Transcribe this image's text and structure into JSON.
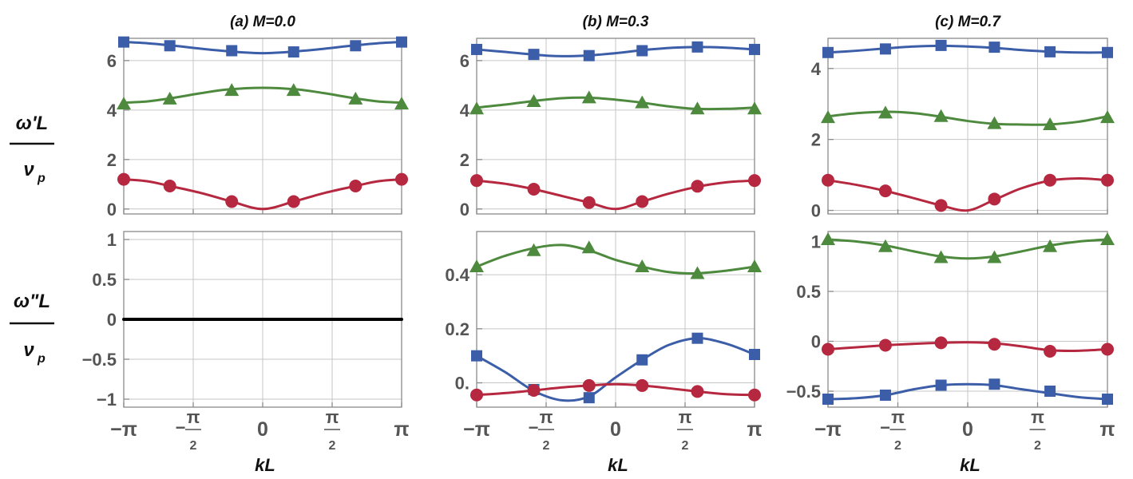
{
  "figure": {
    "row_labels": {
      "top": {
        "num": "ω'L",
        "den": "ν",
        "den_sub": "p"
      },
      "bottom": {
        "num": "ω\"L",
        "den": "ν",
        "den_sub": "p"
      }
    },
    "x_tick_labels": [
      "−π",
      "−π/2",
      "0",
      "π/2",
      "π"
    ],
    "x_label": "kL"
  },
  "chart_data": [
    {
      "type": "line",
      "panel": "a",
      "part": "real",
      "title": "(a) M=0.0",
      "xlabel": "",
      "ylabel": "ω'L / νp",
      "xlim": [
        -3.1416,
        3.1416
      ],
      "ylim": [
        -0.2,
        6.9
      ],
      "yticks": [
        0,
        2,
        4,
        6
      ],
      "ytick_labels": [
        "0",
        "2",
        "4",
        "6"
      ],
      "grid": true,
      "series": [
        {
          "color": "#3c5ea8",
          "marker": "square",
          "x": [
            -3.1416,
            -2.6,
            -2.0,
            -1.4,
            -0.8,
            0,
            0.8,
            1.4,
            2.0,
            2.6,
            3.1416
          ],
          "y": [
            6.75,
            6.7,
            6.6,
            6.48,
            6.38,
            6.3,
            6.38,
            6.48,
            6.6,
            6.7,
            6.75
          ],
          "markers_x": [
            -3.1416,
            -2.1,
            -0.7,
            0.7,
            2.1,
            3.1416
          ],
          "markers_y": [
            6.75,
            6.6,
            6.4,
            6.35,
            6.6,
            6.75
          ]
        },
        {
          "color": "#4e8a3e",
          "marker": "triangle",
          "x": [
            -3.1416,
            -2.6,
            -2.0,
            -1.4,
            -0.8,
            0,
            0.8,
            1.4,
            2.0,
            2.6,
            3.1416
          ],
          "y": [
            4.3,
            4.35,
            4.5,
            4.68,
            4.83,
            4.9,
            4.83,
            4.68,
            4.5,
            4.35,
            4.3
          ],
          "markers_x": [
            -3.1416,
            -2.1,
            -0.7,
            0.7,
            2.1,
            3.1416
          ],
          "markers_y": [
            4.25,
            4.45,
            4.8,
            4.8,
            4.45,
            4.25
          ]
        },
        {
          "color": "#b5283f",
          "marker": "circle",
          "x": [
            -3.1416,
            -2.6,
            -2.1,
            -1.4,
            -0.7,
            0,
            0.7,
            1.4,
            2.1,
            2.6,
            3.1416
          ],
          "y": [
            1.2,
            1.12,
            0.93,
            0.65,
            0.3,
            0.0,
            0.3,
            0.65,
            0.93,
            1.12,
            1.2
          ],
          "markers_x": [
            -3.1416,
            -2.1,
            -0.7,
            0.7,
            2.1,
            3.1416
          ],
          "markers_y": [
            1.2,
            0.93,
            0.3,
            0.3,
            0.93,
            1.2
          ]
        }
      ]
    },
    {
      "type": "line",
      "panel": "b",
      "part": "real",
      "title": "(b) M=0.3",
      "xlabel": "",
      "ylabel": "",
      "xlim": [
        -3.1416,
        3.1416
      ],
      "ylim": [
        -0.2,
        6.9
      ],
      "yticks": [
        0,
        2,
        4,
        6
      ],
      "ytick_labels": [
        "0",
        "2",
        "4",
        "6"
      ],
      "grid": true,
      "series": [
        {
          "color": "#3c5ea8",
          "marker": "square",
          "x": [
            -3.1416,
            -2.5,
            -1.9,
            -1.3,
            -0.7,
            0,
            0.6,
            1.3,
            1.9,
            2.5,
            3.1416
          ],
          "y": [
            6.45,
            6.35,
            6.25,
            6.18,
            6.2,
            6.3,
            6.42,
            6.52,
            6.55,
            6.52,
            6.45
          ],
          "markers_x": [
            -3.1416,
            -1.85,
            -0.6,
            0.6,
            1.85,
            3.1416
          ],
          "markers_y": [
            6.45,
            6.25,
            6.2,
            6.4,
            6.55,
            6.45
          ]
        },
        {
          "color": "#4e8a3e",
          "marker": "triangle",
          "x": [
            -3.1416,
            -2.5,
            -1.8,
            -1.2,
            -0.6,
            0,
            0.6,
            1.2,
            1.8,
            2.5,
            3.1416
          ],
          "y": [
            4.1,
            4.22,
            4.38,
            4.48,
            4.5,
            4.42,
            4.3,
            4.15,
            4.05,
            4.05,
            4.1
          ],
          "markers_x": [
            -3.1416,
            -1.85,
            -0.6,
            0.6,
            1.85,
            3.1416
          ],
          "markers_y": [
            4.05,
            4.35,
            4.5,
            4.3,
            4.05,
            4.05
          ]
        },
        {
          "color": "#b5283f",
          "marker": "circle",
          "x": [
            -3.1416,
            -2.5,
            -1.85,
            -1.2,
            -0.6,
            0,
            0.6,
            1.2,
            1.85,
            2.5,
            3.1416
          ],
          "y": [
            1.15,
            1.02,
            0.8,
            0.52,
            0.26,
            0.0,
            0.3,
            0.62,
            0.9,
            1.08,
            1.15
          ],
          "markers_x": [
            -3.1416,
            -1.85,
            -0.6,
            0.6,
            1.85,
            3.1416
          ],
          "markers_y": [
            1.15,
            0.8,
            0.26,
            0.3,
            0.92,
            1.15
          ]
        }
      ]
    },
    {
      "type": "line",
      "panel": "c",
      "part": "real",
      "title": "(c) M=0.7",
      "xlabel": "",
      "ylabel": "",
      "xlim": [
        -3.1416,
        3.1416
      ],
      "ylim": [
        -0.1,
        4.85
      ],
      "yticks": [
        0,
        2,
        4
      ],
      "ytick_labels": [
        "0",
        "2",
        "4"
      ],
      "grid": true,
      "series": [
        {
          "color": "#3c5ea8",
          "marker": "square",
          "x": [
            -3.1416,
            -2.5,
            -1.9,
            -1.2,
            -0.6,
            0,
            0.6,
            1.2,
            1.9,
            2.5,
            3.1416
          ],
          "y": [
            4.45,
            4.5,
            4.56,
            4.62,
            4.64,
            4.62,
            4.58,
            4.52,
            4.47,
            4.45,
            4.45
          ],
          "markers_x": [
            -3.1416,
            -1.85,
            -0.6,
            0.6,
            1.85,
            3.1416
          ],
          "markers_y": [
            4.45,
            4.55,
            4.65,
            4.6,
            4.47,
            4.45
          ]
        },
        {
          "color": "#4e8a3e",
          "marker": "triangle",
          "x": [
            -3.1416,
            -2.5,
            -1.8,
            -1.2,
            -0.6,
            0,
            0.6,
            1.2,
            1.8,
            2.5,
            3.1416
          ],
          "y": [
            2.65,
            2.74,
            2.78,
            2.74,
            2.64,
            2.52,
            2.44,
            2.42,
            2.42,
            2.5,
            2.65
          ],
          "markers_x": [
            -3.1416,
            -1.85,
            -0.6,
            0.6,
            1.85,
            3.1416
          ],
          "markers_y": [
            2.62,
            2.75,
            2.65,
            2.45,
            2.42,
            2.62
          ]
        },
        {
          "color": "#b5283f",
          "marker": "circle",
          "x": [
            -3.1416,
            -2.5,
            -1.85,
            -1.2,
            -0.6,
            0,
            0.6,
            1.2,
            1.85,
            2.5,
            3.1416
          ],
          "y": [
            0.85,
            0.72,
            0.55,
            0.34,
            0.14,
            0.0,
            0.3,
            0.62,
            0.84,
            0.9,
            0.85
          ],
          "markers_x": [
            -3.1416,
            -1.85,
            -0.6,
            0.6,
            1.85,
            3.1416
          ],
          "markers_y": [
            0.85,
            0.55,
            0.14,
            0.32,
            0.85,
            0.85
          ]
        }
      ]
    },
    {
      "type": "line",
      "panel": "a",
      "part": "imaginary",
      "title": "",
      "xlabel": "kL",
      "ylabel": "ω\"L / νp",
      "xlim": [
        -3.1416,
        3.1416
      ],
      "ylim": [
        -1.1,
        1.1
      ],
      "yticks": [
        -1,
        -0.5,
        0,
        0.5,
        1
      ],
      "ytick_labels": [
        "−1",
        "−0.5",
        "0",
        "0.5",
        "1"
      ],
      "grid": true,
      "series": [
        {
          "color": "#000000",
          "marker": "none",
          "x": [
            -3.1416,
            3.1416
          ],
          "y": [
            0,
            0
          ],
          "markers_x": [],
          "markers_y": []
        }
      ]
    },
    {
      "type": "line",
      "panel": "b",
      "part": "imaginary",
      "title": "",
      "xlabel": "kL",
      "ylabel": "",
      "xlim": [
        -3.1416,
        3.1416
      ],
      "ylim": [
        -0.09,
        0.56
      ],
      "yticks": [
        0,
        0.2,
        0.4
      ],
      "ytick_labels": [
        "0.",
        "0.2",
        "0.4"
      ],
      "grid": true,
      "series": [
        {
          "color": "#4e8a3e",
          "marker": "triangle",
          "x": [
            -3.1416,
            -2.5,
            -1.8,
            -1.2,
            -0.6,
            0,
            0.6,
            1.2,
            1.8,
            2.5,
            3.1416
          ],
          "y": [
            0.43,
            0.47,
            0.5,
            0.51,
            0.49,
            0.455,
            0.43,
            0.41,
            0.405,
            0.415,
            0.43
          ],
          "markers_x": [
            -3.1416,
            -1.85,
            -0.6,
            0.6,
            1.85,
            3.1416
          ],
          "markers_y": [
            0.43,
            0.49,
            0.5,
            0.43,
            0.405,
            0.43
          ]
        },
        {
          "color": "#3c5ea8",
          "marker": "square",
          "x": [
            -3.1416,
            -2.5,
            -1.85,
            -1.2,
            -0.6,
            0,
            0.6,
            1.2,
            1.85,
            2.5,
            3.1416
          ],
          "y": [
            0.1,
            0.04,
            -0.03,
            -0.065,
            -0.05,
            0.02,
            0.085,
            0.14,
            0.165,
            0.145,
            0.105
          ],
          "markers_x": [
            -3.1416,
            -1.85,
            -0.6,
            0.6,
            1.85,
            3.1416
          ],
          "markers_y": [
            0.1,
            -0.025,
            -0.055,
            0.085,
            0.165,
            0.105
          ]
        },
        {
          "color": "#b5283f",
          "marker": "circle",
          "x": [
            -3.1416,
            -2.5,
            -1.85,
            -1.2,
            -0.6,
            0,
            0.6,
            1.2,
            1.85,
            2.5,
            3.1416
          ],
          "y": [
            -0.045,
            -0.038,
            -0.028,
            -0.017,
            -0.01,
            -0.005,
            -0.01,
            -0.02,
            -0.032,
            -0.042,
            -0.045
          ],
          "markers_x": [
            -3.1416,
            -1.85,
            -0.6,
            0.6,
            1.85,
            3.1416
          ],
          "markers_y": [
            -0.045,
            -0.028,
            -0.01,
            -0.01,
            -0.032,
            -0.045
          ]
        }
      ]
    },
    {
      "type": "line",
      "panel": "c",
      "part": "imaginary",
      "title": "",
      "xlabel": "kL",
      "ylabel": "",
      "xlim": [
        -3.1416,
        3.1416
      ],
      "ylim": [
        -0.66,
        1.1
      ],
      "yticks": [
        -0.5,
        0,
        0.5,
        1
      ],
      "ytick_labels": [
        "−0.5",
        "0",
        "0.5",
        "1"
      ],
      "grid": true,
      "series": [
        {
          "color": "#4e8a3e",
          "marker": "triangle",
          "x": [
            -3.1416,
            -2.5,
            -1.85,
            -1.2,
            -0.6,
            0,
            0.6,
            1.2,
            1.85,
            2.5,
            3.1416
          ],
          "y": [
            1.02,
            1.0,
            0.96,
            0.9,
            0.85,
            0.83,
            0.85,
            0.9,
            0.96,
            1.0,
            1.02
          ],
          "markers_x": [
            -3.1416,
            -1.85,
            -0.6,
            0.6,
            1.85,
            3.1416
          ],
          "markers_y": [
            1.02,
            0.95,
            0.84,
            0.84,
            0.95,
            1.02
          ]
        },
        {
          "color": "#b5283f",
          "marker": "circle",
          "x": [
            -3.1416,
            -2.5,
            -1.85,
            -1.2,
            -0.6,
            0,
            0.6,
            1.2,
            1.85,
            2.5,
            3.1416
          ],
          "y": [
            -0.08,
            -0.06,
            -0.04,
            -0.025,
            -0.015,
            -0.01,
            -0.02,
            -0.05,
            -0.09,
            -0.095,
            -0.08
          ],
          "markers_x": [
            -3.1416,
            -1.85,
            -0.6,
            0.6,
            1.85,
            3.1416
          ],
          "markers_y": [
            -0.08,
            -0.04,
            -0.015,
            -0.03,
            -0.1,
            -0.08
          ]
        },
        {
          "color": "#3c5ea8",
          "marker": "square",
          "x": [
            -3.1416,
            -2.5,
            -1.85,
            -1.2,
            -0.6,
            0,
            0.6,
            1.2,
            1.85,
            2.5,
            3.1416
          ],
          "y": [
            -0.58,
            -0.57,
            -0.54,
            -0.48,
            -0.44,
            -0.43,
            -0.44,
            -0.48,
            -0.52,
            -0.56,
            -0.58
          ],
          "markers_x": [
            -3.1416,
            -1.85,
            -0.6,
            0.6,
            1.85,
            3.1416
          ],
          "markers_y": [
            -0.58,
            -0.54,
            -0.44,
            -0.43,
            -0.5,
            -0.58
          ]
        }
      ]
    }
  ]
}
